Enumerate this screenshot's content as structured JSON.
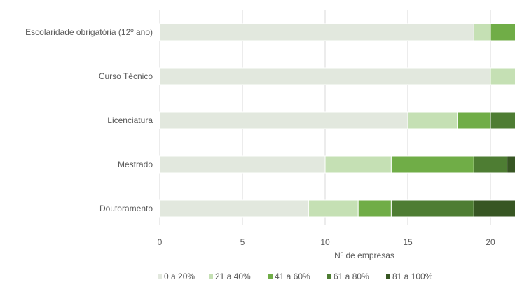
{
  "chart_data": {
    "type": "bar",
    "orientation": "horizontal",
    "stacked": true,
    "categories": [
      "Escolaridade obrigatória (12º ano)",
      "Curso Técnico",
      "Licenciatura",
      "Mestrado",
      "Doutoramento"
    ],
    "series": [
      {
        "name": "0 a 20%",
        "color": "#e2e8de",
        "values": [
          19,
          20,
          15,
          10,
          9
        ]
      },
      {
        "name": "21 a 40%",
        "color": "#c5e0b4",
        "values": [
          1,
          2,
          3,
          4,
          3
        ]
      },
      {
        "name": "41 a 60%",
        "color": "#70ad47",
        "values": [
          2,
          0,
          2,
          5,
          2
        ]
      },
      {
        "name": "61 a 80%",
        "color": "#4e7d33",
        "values": [
          0,
          0,
          2,
          2,
          5
        ]
      },
      {
        "name": "81 a 100%",
        "color": "#375623",
        "values": [
          0,
          0,
          0,
          1,
          3
        ]
      }
    ],
    "xlabel": "Nº de empresas",
    "ylabel": "",
    "xticks": [
      0,
      5,
      10,
      15,
      20
    ],
    "xlim": [
      0,
      23
    ],
    "grid": true,
    "legend_position": "bottom"
  }
}
